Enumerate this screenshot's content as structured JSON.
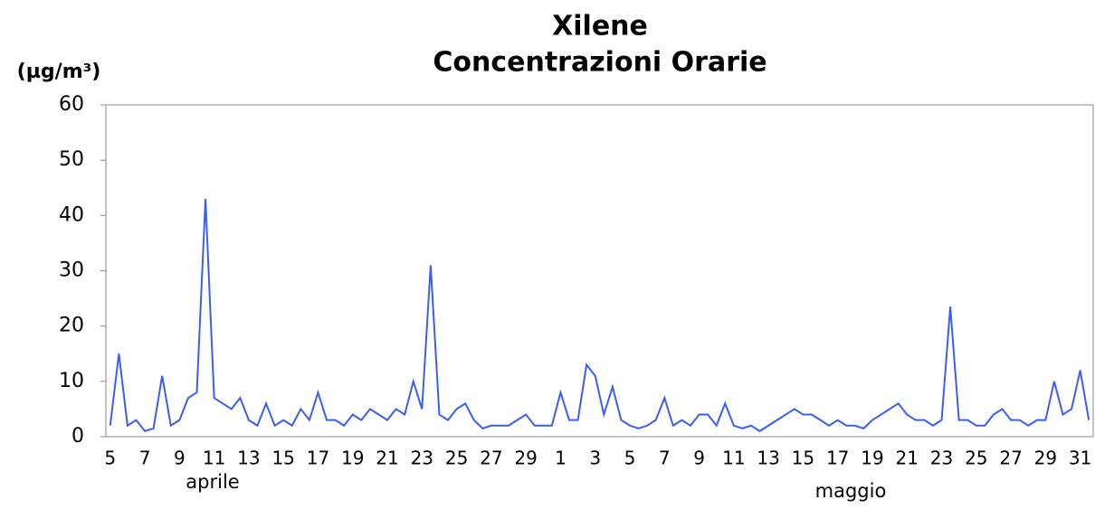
{
  "chart_data": {
    "type": "line",
    "title": [
      "Xilene",
      "Concentrazioni Orarie"
    ],
    "y_label": "(µg/m³)",
    "x_groups": [
      "aprile",
      "maggio"
    ],
    "color": "#3a5ff0",
    "ylim": [
      0,
      60
    ],
    "yticks": [
      0,
      10,
      20,
      30,
      40,
      50,
      60
    ],
    "grid": false,
    "categories": [
      "5",
      null,
      null,
      null,
      "7",
      null,
      null,
      null,
      "9",
      null,
      null,
      null,
      "11",
      null,
      null,
      null,
      "13",
      null,
      null,
      null,
      "15",
      null,
      null,
      null,
      "17",
      null,
      null,
      null,
      "19",
      null,
      null,
      null,
      "21",
      null,
      null,
      null,
      "23",
      null,
      null,
      null,
      "25",
      null,
      null,
      null,
      "27",
      null,
      null,
      null,
      "29",
      null,
      null,
      null,
      "1",
      null,
      null,
      null,
      "3",
      null,
      null,
      null,
      "5",
      null,
      null,
      null,
      "7",
      null,
      null,
      null,
      "9",
      null,
      null,
      null,
      "11",
      null,
      null,
      null,
      "13",
      null,
      null,
      null,
      "15",
      null,
      null,
      null,
      "17",
      null,
      null,
      null,
      "19",
      null,
      null,
      null,
      "21",
      null,
      null,
      null,
      "23",
      null,
      null,
      null,
      "25",
      null,
      null,
      null,
      "27",
      null,
      null,
      null,
      "29",
      null,
      null,
      null,
      "31",
      null
    ],
    "values": [
      2,
      15,
      2,
      3,
      1,
      1.5,
      11,
      2,
      3,
      7,
      8,
      43,
      7,
      6,
      5,
      7,
      3,
      2,
      6,
      2,
      3,
      2,
      5,
      3,
      8,
      3,
      3,
      2,
      4,
      3,
      5,
      4,
      3,
      5,
      4,
      10,
      5,
      31,
      4,
      3,
      5,
      6,
      3,
      1.5,
      2,
      2,
      2,
      3,
      4,
      2,
      2,
      2,
      8,
      3,
      3,
      13,
      11,
      4,
      9,
      3,
      2,
      1.5,
      2,
      3,
      7,
      2,
      3,
      2,
      4,
      4,
      2,
      6,
      2,
      1.5,
      2,
      1,
      2,
      3,
      4,
      5,
      4,
      4,
      3,
      2,
      3,
      2,
      2,
      1.5,
      3,
      4,
      5,
      6,
      4,
      3,
      3,
      2,
      3,
      23.5,
      3,
      3,
      2,
      2,
      4,
      5,
      3,
      3,
      2,
      3,
      3,
      10,
      4,
      5,
      12,
      3
    ]
  }
}
